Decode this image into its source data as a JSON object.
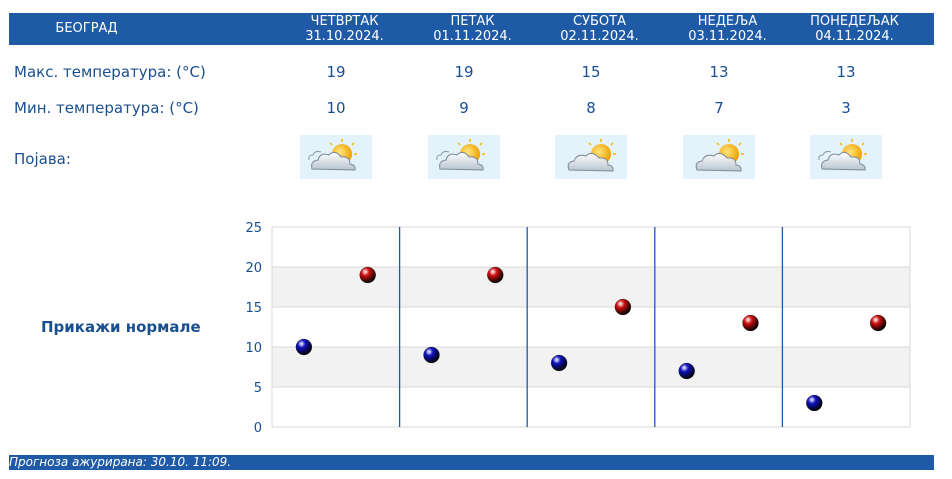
{
  "header": {
    "city": "БЕОГРАД",
    "days": [
      {
        "name": "ЧЕТВРТАК",
        "date": "31.10.2024."
      },
      {
        "name": "ПЕТАК",
        "date": "01.11.2024."
      },
      {
        "name": "СУБОТА",
        "date": "02.11.2024."
      },
      {
        "name": "НЕДЕЉА",
        "date": "03.11.2024."
      },
      {
        "name": "ПОНЕДЕЉАК",
        "date": "04.11.2024."
      }
    ]
  },
  "rows": {
    "max_label": "Макс. температура: (°C)",
    "min_label": "Мин. температура: (°C)",
    "phen_label": "Појава:",
    "max": [
      "19",
      "19",
      "15",
      "13",
      "13"
    ],
    "min": [
      "10",
      "9",
      "8",
      "7",
      "3"
    ],
    "icons": [
      "partly-cloudy-sun-icon",
      "partly-cloudy-sun-icon",
      "cloudy-sun-icon",
      "cloudy-sun-icon",
      "partly-cloudy-sun-icon"
    ]
  },
  "normals_link": "Прикажи нормале",
  "chart_data": {
    "type": "scatter",
    "categories": [
      "31.10.2024.",
      "01.11.2024.",
      "02.11.2024.",
      "03.11.2024.",
      "04.11.2024."
    ],
    "ylim": [
      0,
      25
    ],
    "yticks": [
      "0",
      "5",
      "10",
      "15",
      "20",
      "25"
    ],
    "grid": true,
    "series": [
      {
        "values": [
          10,
          9,
          8,
          7,
          3
        ],
        "color": "#1010c0"
      },
      {
        "values": [
          19,
          19,
          15,
          13,
          13
        ],
        "color": "#d01010"
      }
    ]
  },
  "footer": "Прогноза ажурирана:  30.10. 11:09."
}
